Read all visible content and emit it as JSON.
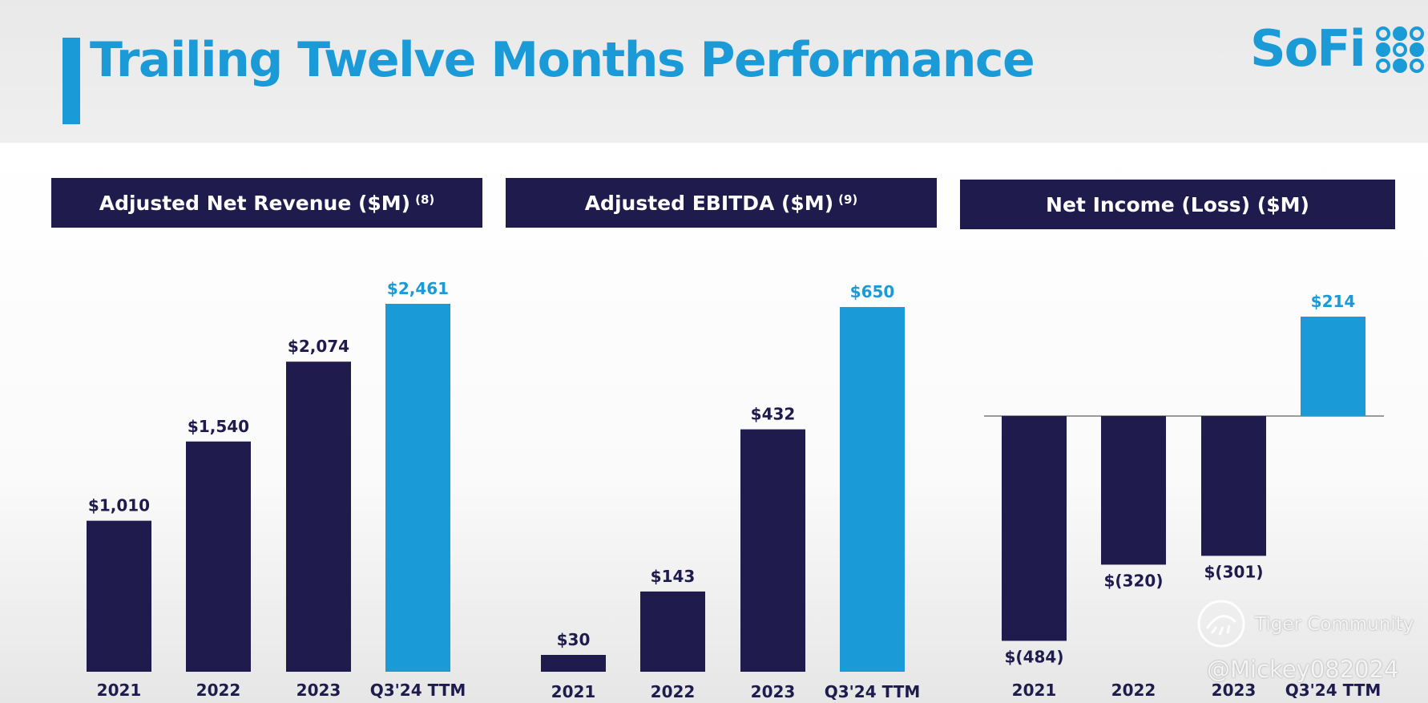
{
  "header": {
    "title": "Trailing Twelve Months Performance",
    "logo_text": "SoFi",
    "accent_color": "#1a9ad6"
  },
  "colors": {
    "navy": "#1f1b4d",
    "blue": "#1a9ad6"
  },
  "chart_data": [
    {
      "type": "bar",
      "title": "Adjusted Net Revenue ($M)",
      "footnote": "(8)",
      "categories": [
        "2021",
        "2022",
        "2023",
        "Q3'24 TTM"
      ],
      "values": [
        1010,
        1540,
        2074,
        2461
      ],
      "value_labels": [
        "$1,010",
        "$1,540",
        "$2,074",
        "$2,461"
      ],
      "highlight_index": 3
    },
    {
      "type": "bar",
      "title": "Adjusted EBITDA ($M)",
      "footnote": "(9)",
      "categories": [
        "2021",
        "2022",
        "2023",
        "Q3'24 TTM"
      ],
      "values": [
        30,
        143,
        432,
        650
      ],
      "value_labels": [
        "$30",
        "$143",
        "$432",
        "$650"
      ],
      "highlight_index": 3
    },
    {
      "type": "bar",
      "title": "Net Income (Loss) ($M)",
      "footnote": "",
      "categories": [
        "2021",
        "2022",
        "2023",
        "Q3'24 TTM"
      ],
      "values": [
        -484,
        -320,
        -301,
        214
      ],
      "value_labels": [
        "$(484)",
        "$(320)",
        "$(301)",
        "$214"
      ],
      "highlight_index": 3
    }
  ],
  "watermark": {
    "community": "Tiger Community",
    "handle": "@Mickey082024",
    "icon": "tiger-community-icon"
  }
}
